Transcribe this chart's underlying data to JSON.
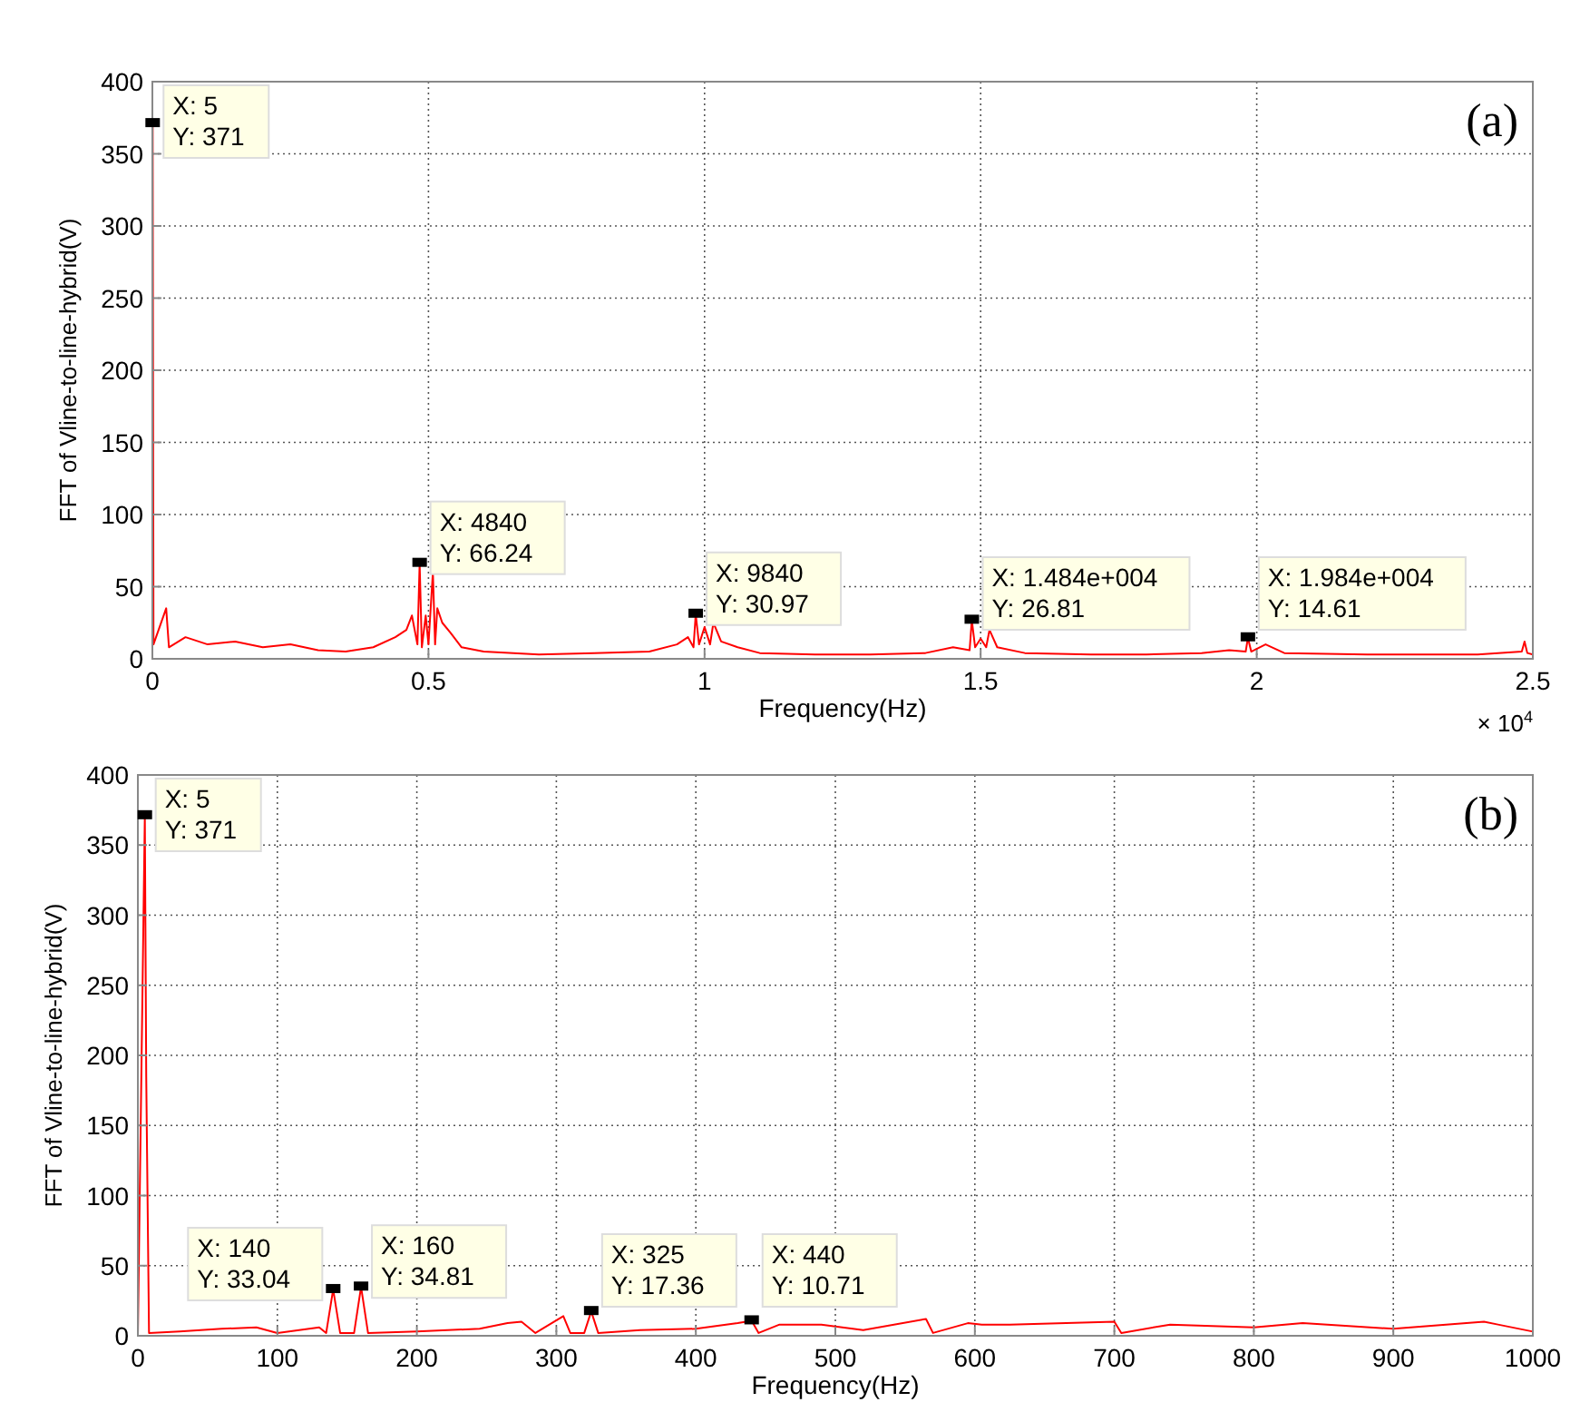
{
  "chart_data": [
    {
      "type": "line",
      "xlabel": "Frequency(Hz)",
      "ylabel": "FFT of Vline-to-line-hybrid(V)",
      "grid": true,
      "xlim": [
        0,
        2.5
      ],
      "ylim": [
        0,
        400
      ],
      "xticks": [
        0,
        0.5,
        1,
        1.5,
        2,
        2.5
      ],
      "yticks": [
        0,
        50,
        100,
        150,
        200,
        250,
        300,
        350,
        400
      ],
      "series": [
        {
          "color": "#ff0000",
          "x": [
            0,
            0.0005,
            0.002,
            0.025,
            0.03,
            0.06,
            0.1,
            0.15,
            0.2,
            0.25,
            0.3,
            0.35,
            0.4,
            0.44,
            0.46,
            0.47,
            0.48,
            0.484,
            0.488,
            0.495,
            0.5,
            0.508,
            0.512,
            0.516,
            0.525,
            0.54,
            0.56,
            0.6,
            0.7,
            0.8,
            0.9,
            0.95,
            0.97,
            0.98,
            0.984,
            0.99,
            1,
            1.01,
            1.016,
            1.03,
            1.06,
            1.1,
            1.2,
            1.3,
            1.4,
            1.45,
            1.48,
            1.484,
            1.49,
            1.5,
            1.51,
            1.516,
            1.53,
            1.58,
            1.7,
            1.8,
            1.9,
            1.95,
            1.98,
            1.984,
            1.99,
            2.016,
            2.05,
            2.2,
            2.4,
            2.48,
            2.485,
            2.49,
            2.5
          ],
          "values": [
            0,
            371,
            10,
            35,
            8,
            15,
            10,
            12,
            8,
            10,
            6,
            5,
            8,
            15,
            20,
            30,
            10,
            66.24,
            8,
            30,
            10,
            60,
            10,
            35,
            25,
            18,
            8,
            5,
            3,
            4,
            5,
            10,
            15,
            8,
            30.97,
            10,
            22,
            10,
            25,
            12,
            8,
            4,
            3,
            3,
            4,
            8,
            6,
            26.81,
            8,
            14,
            8,
            20,
            8,
            4,
            3,
            3,
            4,
            6,
            5,
            14.61,
            5,
            10,
            4,
            3,
            3,
            5,
            12,
            4,
            3
          ]
        }
      ],
      "annotations": [
        {
          "text": "X: 5\nY: 371",
          "x": 0.0005,
          "y": 371
        },
        {
          "text": "X: 4840\nY: 66.24",
          "x": 0.484,
          "y": 66.24
        },
        {
          "text": "X: 9840\nY: 30.97",
          "x": 0.984,
          "y": 30.97
        },
        {
          "text": "X: 1.484e+004\nY: 26.81",
          "x": 1.484,
          "y": 26.81
        },
        {
          "text": "X: 1.984e+004\nY: 14.61",
          "x": 1.984,
          "y": 14.61
        },
        "× 10$^{4}$",
        "(a)"
      ]
    },
    {
      "type": "line",
      "xlabel": "Frequency(Hz)",
      "ylabel": "FFT of Vline-to-line-hybrid(V)",
      "grid": true,
      "xlim": [
        0,
        1000
      ],
      "ylim": [
        0,
        400
      ],
      "xticks": [
        0,
        100,
        200,
        300,
        400,
        500,
        600,
        700,
        800,
        900,
        1000
      ],
      "yticks": [
        0,
        50,
        100,
        150,
        200,
        250,
        300,
        350,
        400
      ],
      "series": [
        {
          "color": "#ff0000",
          "x": [
            0,
            5,
            6,
            8,
            30,
            60,
            85,
            100,
            130,
            135,
            140,
            145,
            155,
            160,
            165,
            200,
            245,
            265,
            275,
            285,
            305,
            310,
            320,
            325,
            330,
            360,
            400,
            430,
            440,
            445,
            460,
            490,
            520,
            565,
            570,
            595,
            605,
            625,
            700,
            705,
            740,
            800,
            835,
            900,
            965,
            975,
            1000
          ],
          "values": [
            0,
            371,
            185,
            2,
            3,
            5,
            6,
            2,
            6,
            2,
            33.04,
            2,
            2,
            34.81,
            2,
            3,
            5,
            9,
            10,
            2,
            14,
            2,
            2,
            17.36,
            2,
            4,
            5,
            9,
            10.71,
            2,
            8,
            8,
            4,
            12,
            2,
            9,
            8,
            8,
            10,
            2,
            8,
            6,
            9,
            5,
            10,
            8,
            3
          ]
        }
      ],
      "annotations": [
        {
          "text": "X: 5\nY: 371",
          "x": 5,
          "y": 371
        },
        {
          "text": "X: 140\nY: 33.04",
          "x": 140,
          "y": 33.04
        },
        {
          "text": "X: 160\nY: 34.81",
          "x": 160,
          "y": 34.81
        },
        {
          "text": "X: 325\nY: 17.36",
          "x": 325,
          "y": 17.36
        },
        {
          "text": "X: 440\nY: 10.71",
          "x": 440,
          "y": 10.71
        },
        "(b)"
      ]
    }
  ]
}
